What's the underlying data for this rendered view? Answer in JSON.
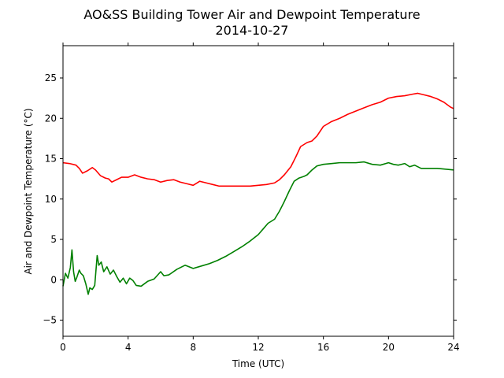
{
  "chart_data": {
    "type": "line",
    "title": "AO&SS Building Tower Air and Dewpoint Temperature",
    "subtitle": "2014-10-27",
    "xlabel": "Time (UTC)",
    "ylabel": "Air and Dewpoint Temperature (°C)",
    "xlim": [
      0,
      24
    ],
    "ylim": [
      -7,
      29
    ],
    "xticks": [
      0,
      4,
      8,
      12,
      16,
      20,
      24
    ],
    "yticks": [
      -5,
      0,
      5,
      10,
      15,
      20,
      25
    ],
    "xtick_labels": [
      "0",
      "4",
      "8",
      "12",
      "16",
      "20",
      "24"
    ],
    "ytick_labels": [
      "−5",
      "0",
      "5",
      "10",
      "15",
      "20",
      "25"
    ],
    "grid": false,
    "legend": "none",
    "series": [
      {
        "color": "#ff0000",
        "x": [
          0,
          0.4,
          0.8,
          1.0,
          1.2,
          1.5,
          1.8,
          2.0,
          2.3,
          2.6,
          2.8,
          3.0,
          3.3,
          3.6,
          4.0,
          4.4,
          4.8,
          5.2,
          5.6,
          6.0,
          6.4,
          6.8,
          7.2,
          7.6,
          8.0,
          8.4,
          8.8,
          9.2,
          9.6,
          10.0,
          10.5,
          11.0,
          11.5,
          12.0,
          12.5,
          13.0,
          13.3,
          13.6,
          14.0,
          14.3,
          14.6,
          15.0,
          15.3,
          15.6,
          16.0,
          16.5,
          17.0,
          17.5,
          18.0,
          18.5,
          19.0,
          19.5,
          20.0,
          20.5,
          21.0,
          21.5,
          21.8,
          22.2,
          22.6,
          23.0,
          23.4,
          23.8,
          24.0
        ],
        "y": [
          14.5,
          14.4,
          14.2,
          13.8,
          13.2,
          13.5,
          13.9,
          13.6,
          12.9,
          12.6,
          12.5,
          12.1,
          12.4,
          12.7,
          12.7,
          13.0,
          12.7,
          12.5,
          12.4,
          12.1,
          12.3,
          12.4,
          12.1,
          11.9,
          11.7,
          12.2,
          12.0,
          11.8,
          11.6,
          11.6,
          11.6,
          11.6,
          11.6,
          11.7,
          11.8,
          12.0,
          12.4,
          13.0,
          14.0,
          15.2,
          16.5,
          17.0,
          17.2,
          17.8,
          19.0,
          19.6,
          20.0,
          20.5,
          20.9,
          21.3,
          21.7,
          22.0,
          22.5,
          22.7,
          22.8,
          23.0,
          23.1,
          22.9,
          22.7,
          22.4,
          22.0,
          21.4,
          21.2
        ]
      },
      {
        "color": "#008000",
        "x": [
          0,
          0.15,
          0.3,
          0.45,
          0.55,
          0.65,
          0.75,
          0.85,
          1.0,
          1.1,
          1.25,
          1.4,
          1.55,
          1.65,
          1.8,
          1.95,
          2.1,
          2.2,
          2.35,
          2.5,
          2.7,
          2.9,
          3.1,
          3.3,
          3.5,
          3.7,
          3.9,
          4.1,
          4.3,
          4.5,
          4.8,
          5.2,
          5.6,
          6.0,
          6.2,
          6.5,
          7.0,
          7.5,
          8.0,
          8.5,
          9.0,
          9.5,
          10.0,
          10.5,
          11.0,
          11.5,
          12.0,
          12.3,
          12.6,
          13.0,
          13.3,
          13.6,
          13.9,
          14.2,
          14.5,
          14.8,
          15.0,
          15.3,
          15.6,
          16.0,
          16.5,
          17.0,
          17.5,
          18.0,
          18.5,
          19.0,
          19.5,
          20.0,
          20.3,
          20.6,
          21.0,
          21.3,
          21.6,
          22.0,
          22.5,
          23.0,
          23.5,
          24.0
        ],
        "y": [
          -0.8,
          0.8,
          0.2,
          1.5,
          3.7,
          1.0,
          -0.2,
          0.3,
          1.2,
          0.8,
          0.5,
          -0.5,
          -1.8,
          -1.0,
          -1.2,
          -0.7,
          3.0,
          1.8,
          2.2,
          1.0,
          1.6,
          0.7,
          1.2,
          0.4,
          -0.3,
          0.2,
          -0.5,
          0.2,
          -0.1,
          -0.7,
          -0.8,
          -0.2,
          0.1,
          1.0,
          0.5,
          0.6,
          1.3,
          1.8,
          1.4,
          1.7,
          2.0,
          2.4,
          2.9,
          3.5,
          4.1,
          4.8,
          5.6,
          6.3,
          7.0,
          7.5,
          8.5,
          9.7,
          11.0,
          12.2,
          12.6,
          12.8,
          13.0,
          13.6,
          14.1,
          14.3,
          14.4,
          14.5,
          14.5,
          14.5,
          14.6,
          14.3,
          14.2,
          14.5,
          14.3,
          14.2,
          14.4,
          14.0,
          14.2,
          13.8,
          13.8,
          13.8,
          13.7,
          13.6
        ]
      }
    ]
  }
}
